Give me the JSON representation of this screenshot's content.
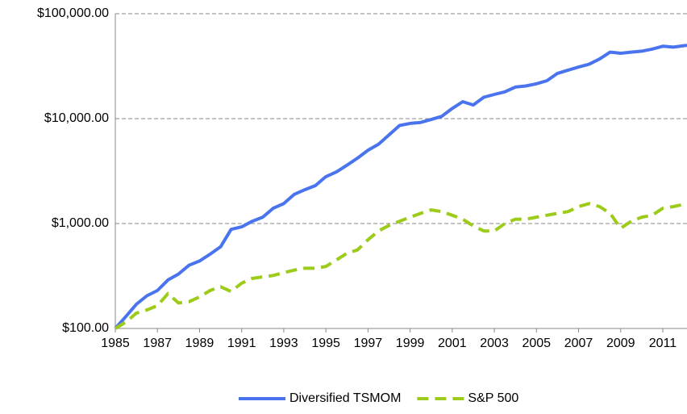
{
  "chart_data": {
    "type": "line",
    "x": [
      1985,
      1985.5,
      1986,
      1986.5,
      1987,
      1987.5,
      1988,
      1988.5,
      1989,
      1989.5,
      1990,
      1990.5,
      1991,
      1991.5,
      1992,
      1992.5,
      1993,
      1993.5,
      1994,
      1994.5,
      1995,
      1995.5,
      1996,
      1996.5,
      1997,
      1997.5,
      1998,
      1998.5,
      1999,
      1999.5,
      2000,
      2000.5,
      2001,
      2001.5,
      2002,
      2002.5,
      2003,
      2003.5,
      2004,
      2004.5,
      2005,
      2005.5,
      2006,
      2006.5,
      2007,
      2007.5,
      2008,
      2008.5,
      2009,
      2009.5,
      2010,
      2010.5,
      2011,
      2011.5,
      2012.15
    ],
    "series": [
      {
        "name": "Diversified TSMOM",
        "color": "#4a74ee",
        "dashed": false,
        "values": [
          100,
          130,
          170,
          205,
          230,
          290,
          330,
          400,
          440,
          510,
          600,
          880,
          930,
          1050,
          1150,
          1400,
          1550,
          1900,
          2100,
          2300,
          2800,
          3100,
          3600,
          4200,
          5000,
          5700,
          7000,
          8600,
          9000,
          9200,
          9800,
          10500,
          12500,
          14500,
          13500,
          16000,
          17000,
          18000,
          20000,
          20500,
          21500,
          23000,
          27000,
          29000,
          31000,
          33000,
          37000,
          43000,
          42000,
          43000,
          44000,
          46000,
          49000,
          48000,
          50000
        ]
      },
      {
        "name": "S&P 500",
        "color": "#9ccb19",
        "dashed": true,
        "values": [
          100,
          115,
          140,
          150,
          165,
          215,
          175,
          180,
          200,
          230,
          250,
          225,
          270,
          300,
          310,
          320,
          340,
          360,
          375,
          375,
          390,
          450,
          520,
          560,
          700,
          850,
          960,
          1050,
          1150,
          1250,
          1350,
          1300,
          1200,
          1100,
          950,
          850,
          850,
          1000,
          1100,
          1100,
          1150,
          1200,
          1250,
          1300,
          1450,
          1550,
          1450,
          1250,
          900,
          1050,
          1150,
          1200,
          1400,
          1450,
          1550
        ]
      }
    ],
    "xlim": [
      1985,
      2012.15
    ],
    "xticks": [
      1985,
      1987,
      1989,
      1991,
      1993,
      1995,
      1997,
      1999,
      2001,
      2003,
      2005,
      2007,
      2009,
      2011
    ],
    "ylim": [
      100,
      100000
    ],
    "yticks": [
      {
        "value": 100,
        "label": "$100.00"
      },
      {
        "value": 1000,
        "label": "$1,000.00"
      },
      {
        "value": 10000,
        "label": "$10,000.00"
      },
      {
        "value": 100000,
        "label": "$100,000.00"
      }
    ],
    "log_y": true,
    "grid": true,
    "legend": "bottom"
  }
}
